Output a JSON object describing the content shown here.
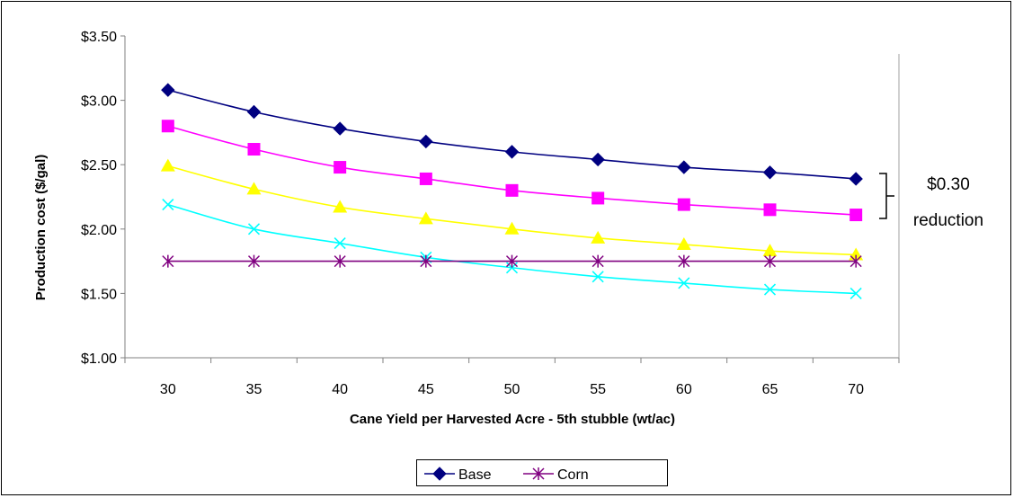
{
  "chart_data": {
    "type": "line",
    "title": "",
    "xlabel": "Cane Yield per Harvested Acre - 5th stubble (wt/ac)",
    "ylabel": "Production cost ($/gal)",
    "categories": [
      "30",
      "35",
      "40",
      "45",
      "50",
      "55",
      "60",
      "65",
      "70"
    ],
    "ylim": [
      1.0,
      3.5
    ],
    "yticks": [
      "$1.00",
      "$1.50",
      "$2.00",
      "$2.50",
      "$3.00",
      "$3.50"
    ],
    "grid": false,
    "legend_position": "bottom",
    "series": [
      {
        "name": "Base",
        "color": "#000080",
        "marker": "diamond",
        "values": [
          3.08,
          2.91,
          2.78,
          2.68,
          2.6,
          2.54,
          2.48,
          2.44,
          2.39
        ]
      },
      {
        "color": "#FF00FF",
        "marker": "square",
        "values": [
          2.8,
          2.62,
          2.48,
          2.39,
          2.3,
          2.24,
          2.19,
          2.15,
          2.11
        ]
      },
      {
        "color": "#FFFF00",
        "marker": "triangle",
        "values": [
          2.49,
          2.31,
          2.17,
          2.08,
          2.0,
          1.93,
          1.88,
          1.83,
          1.8
        ]
      },
      {
        "color": "#00FFFF",
        "marker": "x",
        "values": [
          2.19,
          2.0,
          1.89,
          1.78,
          1.7,
          1.63,
          1.58,
          1.53,
          1.5
        ]
      },
      {
        "name": "Corn",
        "color": "#800080",
        "marker": "star",
        "values": [
          1.75,
          1.75,
          1.75,
          1.75,
          1.75,
          1.75,
          1.75,
          1.75,
          1.75
        ]
      }
    ],
    "annotation": {
      "line1": "$0.30",
      "line2": "reduction"
    }
  }
}
